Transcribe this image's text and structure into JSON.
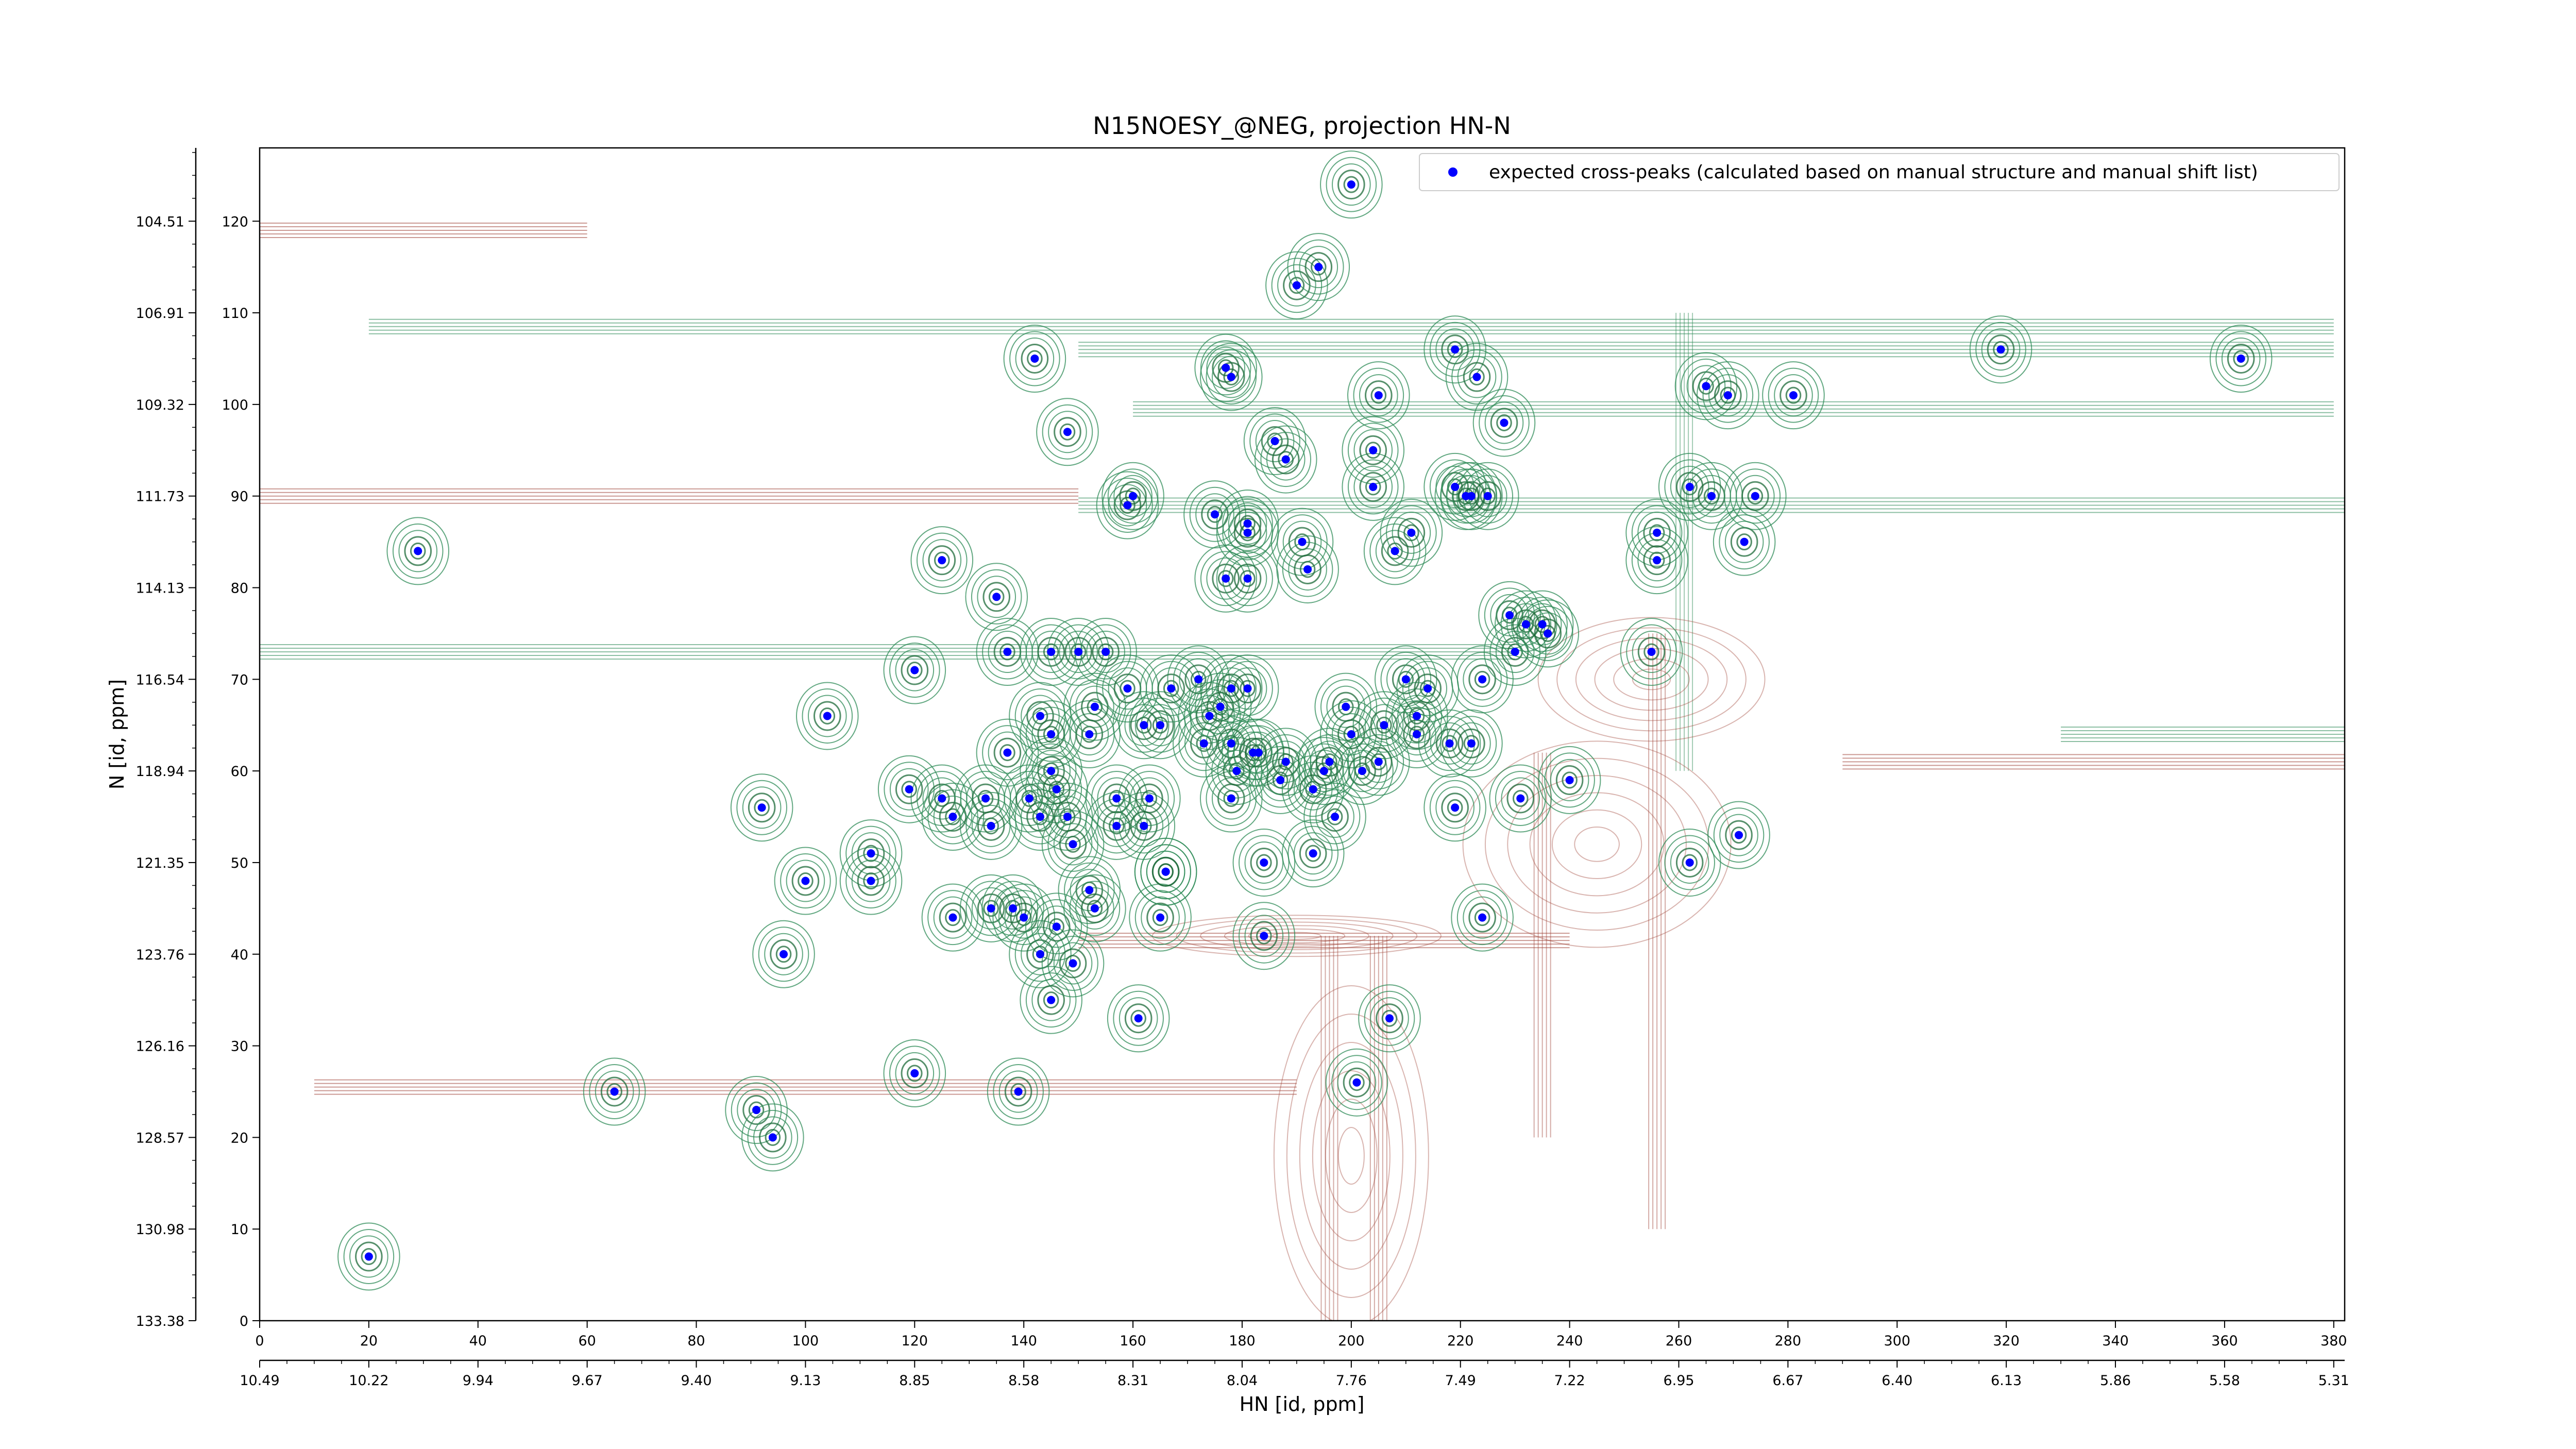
{
  "chart_data": {
    "type": "scatter",
    "title": "N15NOESY_@NEG, projection HN-N",
    "xlabel": "HN [id, ppm]",
    "ylabel": "N [id, ppm]",
    "xlim": [
      0,
      382
    ],
    "ylim": [
      0,
      128
    ],
    "grid": false,
    "legend_position": "top-right",
    "x_ticks": [
      0,
      20,
      40,
      60,
      80,
      100,
      120,
      140,
      160,
      180,
      200,
      220,
      240,
      260,
      280,
      300,
      320,
      340,
      360,
      380
    ],
    "y_ticks": [
      0,
      10,
      20,
      30,
      40,
      50,
      60,
      70,
      80,
      90,
      100,
      110,
      120
    ],
    "hn_ppm_ticks": [
      "10.49",
      "10.22",
      "9.94",
      "9.67",
      "9.40",
      "9.13",
      "8.85",
      "8.58",
      "8.31",
      "8.04",
      "7.76",
      "7.49",
      "7.22",
      "6.95",
      "6.67",
      "6.40",
      "6.13",
      "5.86",
      "5.58",
      "5.31"
    ],
    "n_ppm_ticks": [
      "133.38",
      "130.98",
      "128.57",
      "126.16",
      "123.76",
      "121.35",
      "118.94",
      "116.54",
      "114.13",
      "111.73",
      "109.32",
      "106.91",
      "104.51"
    ],
    "series": [
      {
        "name": "expected cross-peaks (calculated based on manual structure and manual shift list)",
        "color": "#0000ff",
        "points": [
          [
            20,
            7
          ],
          [
            29,
            84
          ],
          [
            65,
            25
          ],
          [
            91,
            23
          ],
          [
            94,
            20
          ],
          [
            92,
            56
          ],
          [
            96,
            40
          ],
          [
            100,
            48
          ],
          [
            104,
            66
          ],
          [
            112,
            51
          ],
          [
            112,
            48
          ],
          [
            120,
            71
          ],
          [
            120,
            27
          ],
          [
            119,
            58
          ],
          [
            125,
            57
          ],
          [
            127,
            55
          ],
          [
            125,
            83
          ],
          [
            127,
            44
          ],
          [
            133,
            57
          ],
          [
            134,
            54
          ],
          [
            134,
            45
          ],
          [
            135,
            79
          ],
          [
            137,
            73
          ],
          [
            137,
            62
          ],
          [
            138,
            45
          ],
          [
            139,
            25
          ],
          [
            140,
            44
          ],
          [
            141,
            57
          ],
          [
            143,
            40
          ],
          [
            142,
            105
          ],
          [
            143,
            66
          ],
          [
            143,
            55
          ],
          [
            145,
            73
          ],
          [
            145,
            64
          ],
          [
            145,
            60
          ],
          [
            146,
            58
          ],
          [
            145,
            35
          ],
          [
            146,
            43
          ],
          [
            148,
            97
          ],
          [
            148,
            55
          ],
          [
            149,
            52
          ],
          [
            150,
            73
          ],
          [
            149,
            39
          ],
          [
            152,
            64
          ],
          [
            153,
            67
          ],
          [
            152,
            47
          ],
          [
            153,
            45
          ],
          [
            155,
            73
          ],
          [
            157,
            57
          ],
          [
            157,
            54
          ],
          [
            159,
            89
          ],
          [
            159,
            69
          ],
          [
            160,
            90
          ],
          [
            161,
            33
          ],
          [
            162,
            54
          ],
          [
            163,
            57
          ],
          [
            162,
            65
          ],
          [
            165,
            44
          ],
          [
            165,
            65
          ],
          [
            166,
            49
          ],
          [
            166,
            49
          ],
          [
            167,
            69
          ],
          [
            172,
            70
          ],
          [
            173,
            63
          ],
          [
            174,
            66
          ],
          [
            176,
            67
          ],
          [
            175,
            88
          ],
          [
            177,
            104
          ],
          [
            178,
            103
          ],
          [
            177,
            81
          ],
          [
            178,
            63
          ],
          [
            178,
            57
          ],
          [
            178,
            69
          ],
          [
            179,
            60
          ],
          [
            181,
            81
          ],
          [
            181,
            87
          ],
          [
            181,
            69
          ],
          [
            181,
            86
          ],
          [
            183,
            62
          ],
          [
            182,
            62
          ],
          [
            184,
            42
          ],
          [
            184,
            50
          ],
          [
            186,
            96
          ],
          [
            188,
            94
          ],
          [
            187,
            59
          ],
          [
            188,
            61
          ],
          [
            190,
            113
          ],
          [
            191,
            85
          ],
          [
            192,
            82
          ],
          [
            193,
            58
          ],
          [
            193,
            51
          ],
          [
            194,
            115
          ],
          [
            195,
            60
          ],
          [
            196,
            61
          ],
          [
            197,
            55
          ],
          [
            199,
            67
          ],
          [
            200,
            124
          ],
          [
            200,
            64
          ],
          [
            201,
            26
          ],
          [
            202,
            60
          ],
          [
            204,
            91
          ],
          [
            204,
            95
          ],
          [
            205,
            61
          ],
          [
            205,
            101
          ],
          [
            206,
            65
          ],
          [
            207,
            33
          ],
          [
            208,
            84
          ],
          [
            210,
            70
          ],
          [
            211,
            86
          ],
          [
            212,
            66
          ],
          [
            212,
            64
          ],
          [
            214,
            69
          ],
          [
            218,
            63
          ],
          [
            219,
            56
          ],
          [
            219,
            106
          ],
          [
            219,
            91
          ],
          [
            221,
            90
          ],
          [
            222,
            90
          ],
          [
            222,
            63
          ],
          [
            223,
            103
          ],
          [
            224,
            44
          ],
          [
            224,
            70
          ],
          [
            225,
            90
          ],
          [
            228,
            98
          ],
          [
            229,
            77
          ],
          [
            230,
            73
          ],
          [
            231,
            57
          ],
          [
            232,
            76
          ],
          [
            235,
            76
          ],
          [
            236,
            75
          ],
          [
            240,
            59
          ],
          [
            255,
            73
          ],
          [
            256,
            86
          ],
          [
            256,
            83
          ],
          [
            262,
            91
          ],
          [
            262,
            50
          ],
          [
            265,
            102
          ],
          [
            266,
            90
          ],
          [
            269,
            101
          ],
          [
            271,
            53
          ],
          [
            272,
            85
          ],
          [
            274,
            90
          ],
          [
            281,
            101
          ],
          [
            319,
            106
          ],
          [
            363,
            105
          ]
        ]
      }
    ]
  }
}
